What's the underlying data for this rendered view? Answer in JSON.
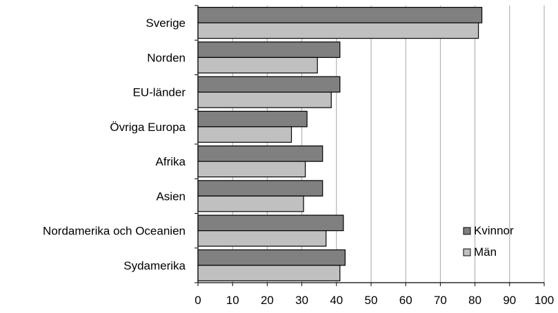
{
  "chart_data": {
    "type": "bar",
    "orientation": "horizontal",
    "categories": [
      "Sverige",
      "Norden",
      "EU-länder",
      "Övriga Europa",
      "Afrika",
      "Asien",
      "Nordamerika och Oceanien",
      "Sydamerika"
    ],
    "series": [
      {
        "name": "Kvinnor",
        "values": [
          82,
          41,
          41,
          31.5,
          36,
          36,
          42,
          42.5
        ],
        "color": "#808080"
      },
      {
        "name": "Män",
        "values": [
          81,
          34.5,
          38.5,
          27,
          31,
          30.5,
          37,
          41
        ],
        "color": "#c0c0c0"
      }
    ],
    "title": "",
    "xlabel": "",
    "ylabel": "",
    "xlim": [
      0,
      100
    ],
    "xticks": [
      "0",
      "10",
      "20",
      "30",
      "40",
      "50",
      "60",
      "70",
      "80",
      "90",
      "100"
    ],
    "grid": "vertical",
    "legend": "lower-right"
  }
}
